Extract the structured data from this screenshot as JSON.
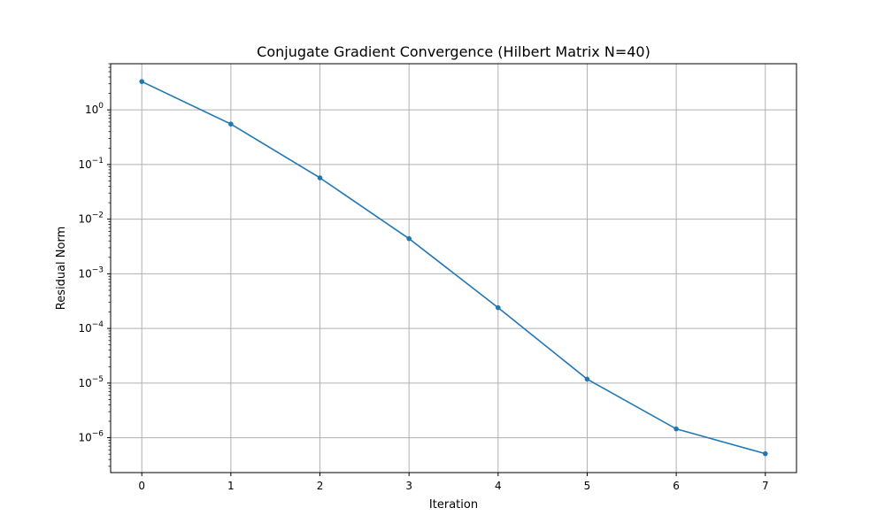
{
  "chart_data": {
    "type": "line",
    "title": "Conjugate Gradient Convergence (Hilbert Matrix N=40)",
    "xlabel": "Iteration",
    "ylabel": "Residual Norm",
    "yscale": "log",
    "grid": true,
    "xlim": [
      -0.35,
      7.35
    ],
    "ylim": [
      2.3e-07,
      7.0
    ],
    "x_ticks": [
      0,
      1,
      2,
      3,
      4,
      5,
      6,
      7
    ],
    "y_ticks": [
      {
        "value": 1e-06,
        "base": "10",
        "exp": "−6"
      },
      {
        "value": 1e-05,
        "base": "10",
        "exp": "−5"
      },
      {
        "value": 0.0001,
        "base": "10",
        "exp": "−4"
      },
      {
        "value": 0.001,
        "base": "10",
        "exp": "−3"
      },
      {
        "value": 0.01,
        "base": "10",
        "exp": "−2"
      },
      {
        "value": 0.1,
        "base": "10",
        "exp": "−1"
      },
      {
        "value": 1,
        "base": "10",
        "exp": "0"
      }
    ],
    "series": [
      {
        "color": "#1f77b4",
        "marker": "circle",
        "x": [
          0,
          1,
          2,
          3,
          4,
          5,
          6,
          7
        ],
        "values": [
          3.3,
          0.55,
          0.057,
          0.0044,
          0.00024,
          1.18e-05,
          1.45e-06,
          5.1e-07
        ]
      }
    ]
  }
}
